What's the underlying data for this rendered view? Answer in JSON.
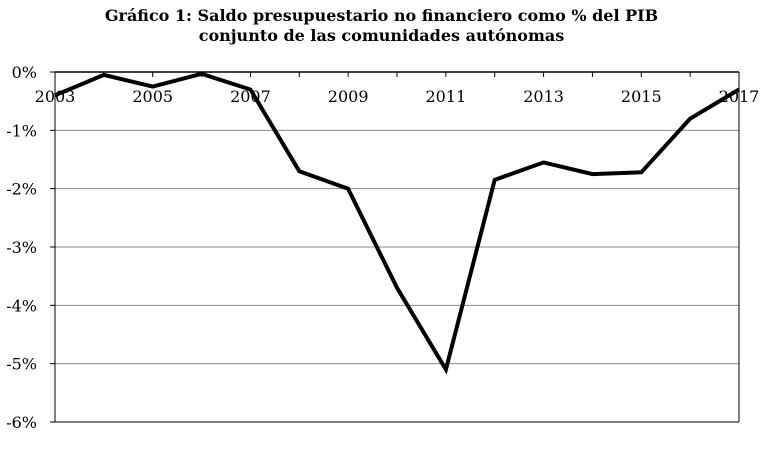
{
  "chart_data": {
    "type": "line",
    "title_line1": "Gráfico 1: Saldo presupuestario no financiero como % del PIB",
    "title_line2": "conjunto de las comunidades autónomas",
    "xlabel": "",
    "ylabel": "",
    "x": [
      2003,
      2004,
      2005,
      2006,
      2007,
      2008,
      2009,
      2010,
      2011,
      2012,
      2013,
      2014,
      2015,
      2016,
      2017
    ],
    "x_ticks": [
      "2003",
      "2005",
      "2007",
      "2009",
      "2011",
      "2013",
      "2015",
      "2017"
    ],
    "xlim": [
      2003,
      2017
    ],
    "y_ticks": [
      "0%",
      "-1%",
      "-2%",
      "-3%",
      "-4%",
      "-5%",
      "-6%"
    ],
    "ylim": [
      -6,
      0
    ],
    "series": [
      {
        "values": [
          -0.4,
          -0.05,
          -0.25,
          -0.03,
          -0.3,
          -1.7,
          -2.0,
          -3.7,
          -5.1,
          -1.85,
          -1.55,
          -1.75,
          -1.72,
          -0.8,
          -0.3
        ],
        "color": "#000000"
      }
    ],
    "grid": true
  }
}
